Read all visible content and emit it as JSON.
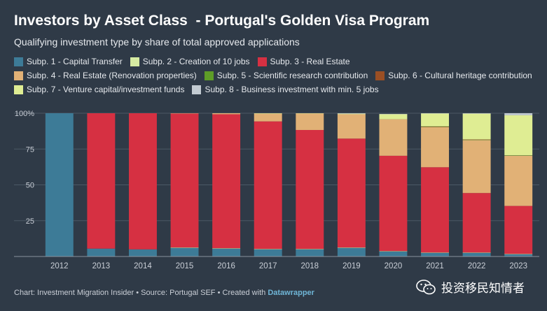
{
  "header": {
    "title": "Investors by Asset Class  - Portugal's Golden Visa Program",
    "subtitle": "Qualifying investment type by share of total approved applications"
  },
  "footer": {
    "source": "Chart: Investment Migration Insider • Source: Portugal SEF • Created with ",
    "tool": "Datawrapper"
  },
  "watermark": {
    "text": "投资移民知情者",
    "icon": "wechat-icon"
  },
  "chart_data": {
    "type": "bar",
    "stacked": true,
    "categories": [
      "2012",
      "2013",
      "2014",
      "2015",
      "2016",
      "2017",
      "2018",
      "2019",
      "2020",
      "2021",
      "2022",
      "2023"
    ],
    "ylim": [
      0,
      100
    ],
    "yticks": [
      0,
      25,
      50,
      75,
      100
    ],
    "ytick_labels": [
      "",
      "25",
      "50",
      "75",
      "100%"
    ],
    "grid": true,
    "legend_position": "top",
    "series": [
      {
        "name": "Subp. 1 - Capital Transfer",
        "color": "#3d7b97",
        "values": [
          100,
          5.5,
          5,
          6,
          5.5,
          5,
          5,
          6,
          3.5,
          2.5,
          2.5,
          1.5
        ]
      },
      {
        "name": "Subp. 2 - Creation of 10 jobs",
        "color": "#d6eba2",
        "values": [
          0,
          0,
          0,
          0.3,
          0.3,
          0.3,
          0.3,
          0.3,
          0.3,
          0.3,
          0.3,
          0.3
        ]
      },
      {
        "name": "Subp. 3 - Real Estate",
        "color": "#d63042",
        "values": [
          0,
          94.5,
          95,
          93.5,
          93.5,
          89,
          83,
          76,
          66.5,
          59.5,
          41.5,
          33.5
        ]
      },
      {
        "name": "Subp. 4 - Real Estate (Renovation properties)",
        "color": "#e1b176",
        "values": [
          0,
          0,
          0,
          0.2,
          0.7,
          5.4,
          11.5,
          17,
          25.5,
          28,
          37,
          35
        ]
      },
      {
        "name": "Subp. 5 - Scientific research contribution",
        "color": "#5e9d27",
        "values": [
          0,
          0,
          0,
          0,
          0,
          0,
          0,
          0,
          0,
          0.2,
          0.2,
          0.2
        ]
      },
      {
        "name": "Subp. 6 - Cultural heritage contribution",
        "color": "#9b4f24",
        "values": [
          0,
          0,
          0,
          0,
          0,
          0,
          0,
          0,
          0,
          0.3,
          0.2,
          0.1
        ]
      },
      {
        "name": "Subp. 7 - Venture capital/investment funds",
        "color": "#dfed93",
        "values": [
          0,
          0,
          0,
          0,
          0,
          0.3,
          0.2,
          0.4,
          3.5,
          9,
          18,
          28
        ]
      },
      {
        "name": "Subp. 8 - Business investment with min. 5 jobs",
        "color": "#c3cbd2",
        "values": [
          0,
          0,
          0,
          0,
          0,
          0,
          0,
          0.3,
          0.2,
          0.2,
          0.3,
          1.4
        ]
      }
    ]
  }
}
